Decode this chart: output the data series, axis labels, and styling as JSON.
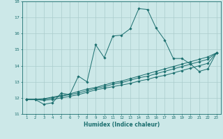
{
  "title": "",
  "xlabel": "Humidex (Indice chaleur)",
  "ylabel": "",
  "background_color": "#cce8e8",
  "grid_color": "#aacccc",
  "line_color": "#1a6e6e",
  "xlim": [
    0.5,
    23.5
  ],
  "ylim": [
    11,
    18
  ],
  "yticks": [
    11,
    12,
    13,
    14,
    15,
    16,
    17,
    18
  ],
  "xticks": [
    1,
    2,
    3,
    4,
    5,
    6,
    7,
    8,
    9,
    10,
    11,
    12,
    13,
    14,
    15,
    16,
    17,
    18,
    19,
    20,
    21,
    22,
    23
  ],
  "series": [
    {
      "x": [
        1,
        2,
        3,
        4,
        5,
        6,
        7,
        8,
        9,
        10,
        11,
        12,
        13,
        14,
        15,
        16,
        17,
        18,
        19,
        20,
        21,
        22,
        23
      ],
      "y": [
        11.9,
        11.9,
        11.6,
        11.7,
        12.3,
        12.2,
        13.35,
        13.0,
        15.3,
        14.5,
        15.85,
        15.9,
        16.3,
        17.55,
        17.5,
        16.35,
        15.6,
        14.45,
        14.45,
        14.1,
        13.65,
        13.8,
        14.8
      ]
    },
    {
      "x": [
        1,
        2,
        3,
        4,
        5,
        6,
        7,
        8,
        9,
        10,
        11,
        12,
        13,
        14,
        15,
        16,
        17,
        18,
        19,
        20,
        21,
        22,
        23
      ],
      "y": [
        11.9,
        11.9,
        11.85,
        11.9,
        12.0,
        12.1,
        12.2,
        12.35,
        12.5,
        12.6,
        12.7,
        12.8,
        12.9,
        13.05,
        13.15,
        13.3,
        13.4,
        13.55,
        13.7,
        13.85,
        14.0,
        14.15,
        14.8
      ]
    },
    {
      "x": [
        1,
        2,
        3,
        4,
        5,
        6,
        7,
        8,
        9,
        10,
        11,
        12,
        13,
        14,
        15,
        16,
        17,
        18,
        19,
        20,
        21,
        22,
        23
      ],
      "y": [
        11.9,
        11.9,
        11.9,
        12.0,
        12.1,
        12.2,
        12.3,
        12.45,
        12.6,
        12.7,
        12.85,
        12.95,
        13.1,
        13.25,
        13.35,
        13.5,
        13.65,
        13.8,
        13.95,
        14.1,
        14.25,
        14.4,
        14.8
      ]
    },
    {
      "x": [
        1,
        2,
        3,
        4,
        5,
        6,
        7,
        8,
        9,
        10,
        11,
        12,
        13,
        14,
        15,
        16,
        17,
        18,
        19,
        20,
        21,
        22,
        23
      ],
      "y": [
        11.9,
        11.9,
        11.95,
        12.05,
        12.15,
        12.25,
        12.4,
        12.55,
        12.65,
        12.8,
        12.95,
        13.05,
        13.2,
        13.35,
        13.5,
        13.65,
        13.8,
        13.95,
        14.1,
        14.25,
        14.4,
        14.55,
        14.8
      ]
    }
  ]
}
